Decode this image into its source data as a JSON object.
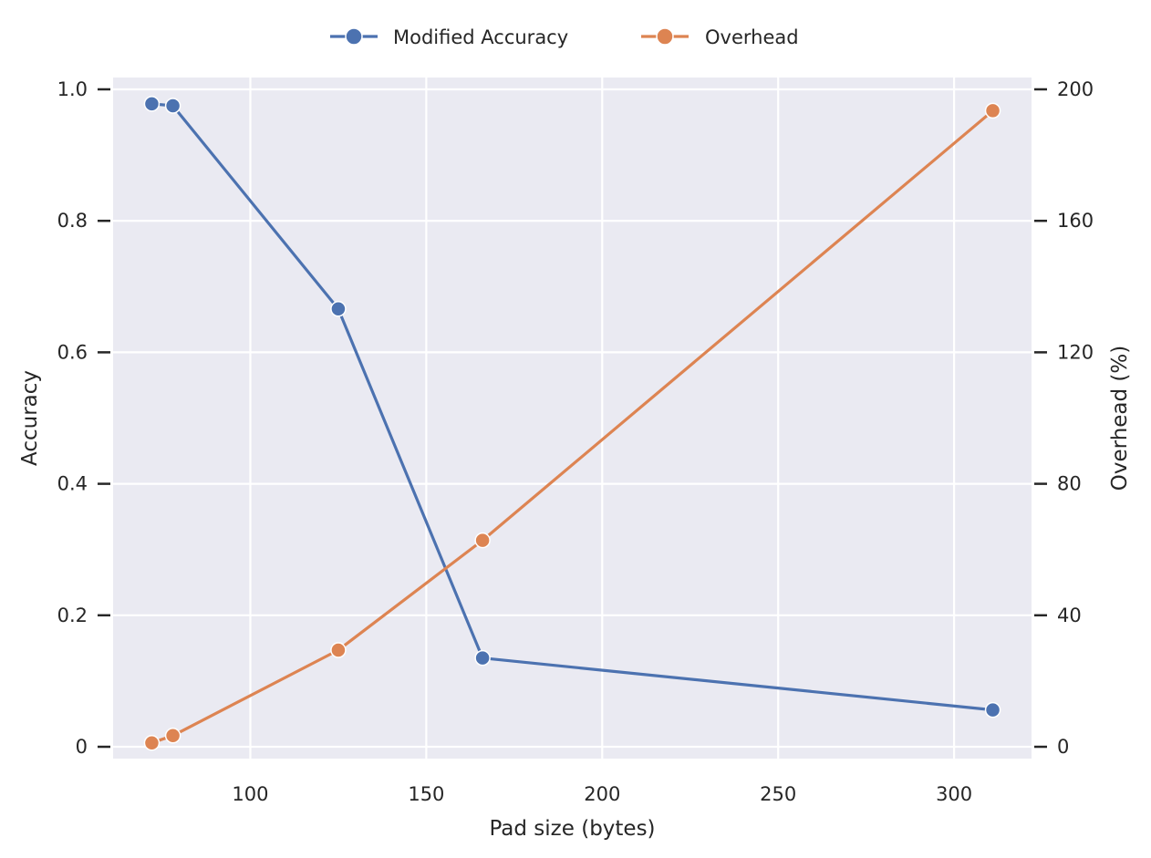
{
  "chart_data": {
    "type": "line",
    "xlabel": "Pad size (bytes)",
    "ylabel": "Accuracy",
    "y2label": "Overhead (%)",
    "xlim": [
      61,
      322
    ],
    "ylim": [
      -0.018,
      1.018
    ],
    "y2lim": [
      -3.6,
      203.6
    ],
    "x_ticks": [
      100,
      150,
      200,
      250,
      300
    ],
    "y_ticks": [
      0,
      0.2,
      0.4,
      0.6,
      0.8,
      1.0
    ],
    "y_tick_labels": [
      "0",
      "0.2",
      "0.4",
      "0.6",
      "0.8",
      "1.0"
    ],
    "y2_ticks": [
      0,
      40,
      80,
      120,
      160,
      200
    ],
    "grid": true,
    "legend_position": "top-center",
    "series": [
      {
        "name": "Modified Accuracy",
        "axis": "left",
        "color": "#4c72b0",
        "x": [
          72,
          78,
          125,
          166,
          311
        ],
        "values": [
          0.978,
          0.975,
          0.666,
          0.135,
          0.056
        ]
      },
      {
        "name": "Overhead",
        "axis": "right",
        "color": "#dd8452",
        "x": [
          72,
          78,
          125,
          166,
          311
        ],
        "values": [
          1.2,
          3.4,
          29.4,
          62.8,
          193.5
        ]
      }
    ]
  }
}
